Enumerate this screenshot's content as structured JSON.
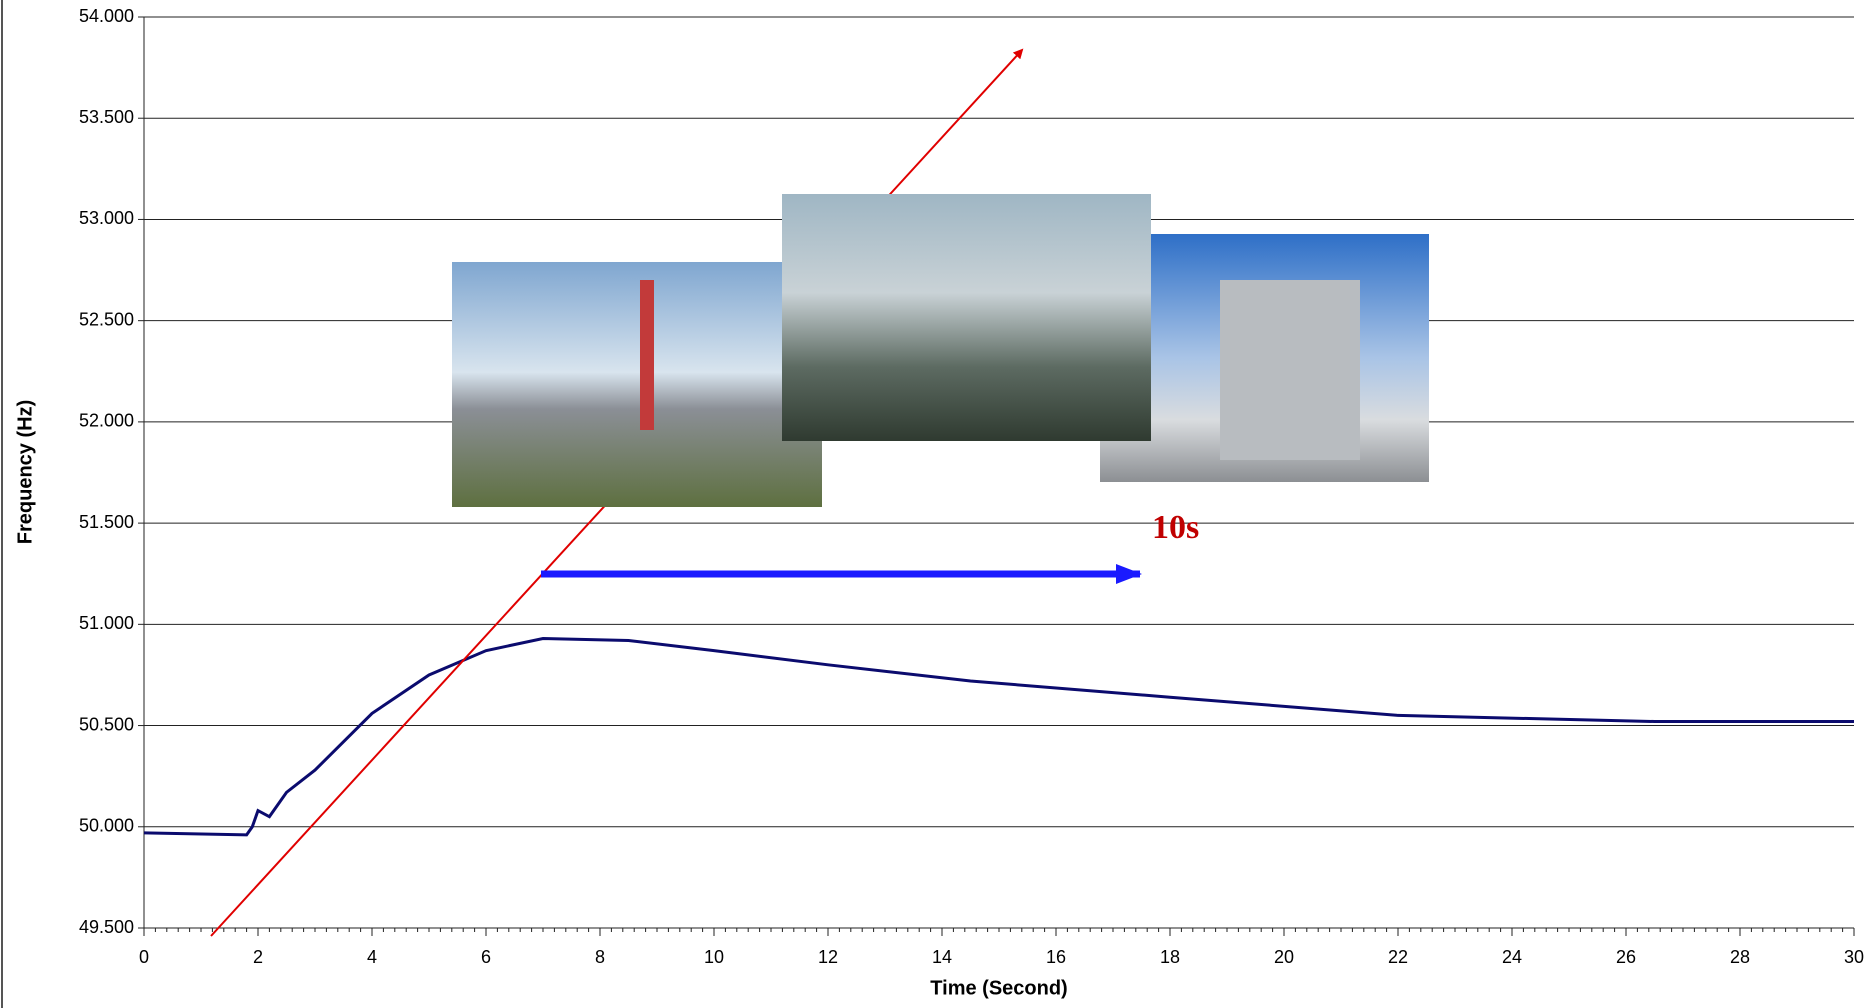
{
  "chart_data": {
    "type": "line",
    "x_label": "Time (Second)",
    "y_label": "Frequency (Hz)",
    "annotation": "10s",
    "x": [
      0,
      1.8,
      1.9,
      2.0,
      2.2,
      2.5,
      3,
      4,
      5,
      6,
      7,
      8.5,
      10,
      12,
      14.5,
      18,
      22,
      26.5,
      30
    ],
    "series": [
      {
        "color": "#0b0b6e",
        "values": [
          49.97,
          49.96,
          50.0,
          50.08,
          50.05,
          50.17,
          50.28,
          50.56,
          50.75,
          50.87,
          50.93,
          50.92,
          50.87,
          50.8,
          50.72,
          50.64,
          50.55,
          50.52,
          50.52
        ]
      }
    ],
    "xlim": [
      0,
      30
    ],
    "ylim": [
      49.5,
      54
    ],
    "xticks": [
      0,
      2,
      4,
      6,
      8,
      10,
      12,
      14,
      16,
      18,
      20,
      22,
      24,
      26,
      28,
      30
    ],
    "yticks": [
      {
        "value": 49.5,
        "label": "49.500"
      },
      {
        "value": 50,
        "label": "50.000"
      },
      {
        "value": 50.5,
        "label": "50.500"
      },
      {
        "value": 51,
        "label": "51.000"
      },
      {
        "value": 51.5,
        "label": "51.500"
      },
      {
        "value": 52,
        "label": "52.000"
      },
      {
        "value": 52.5,
        "label": "52.500"
      },
      {
        "value": 53,
        "label": "53.000"
      },
      {
        "value": 53.5,
        "label": "53.500"
      },
      {
        "value": 54,
        "label": "54.000"
      }
    ],
    "grid": true
  }
}
